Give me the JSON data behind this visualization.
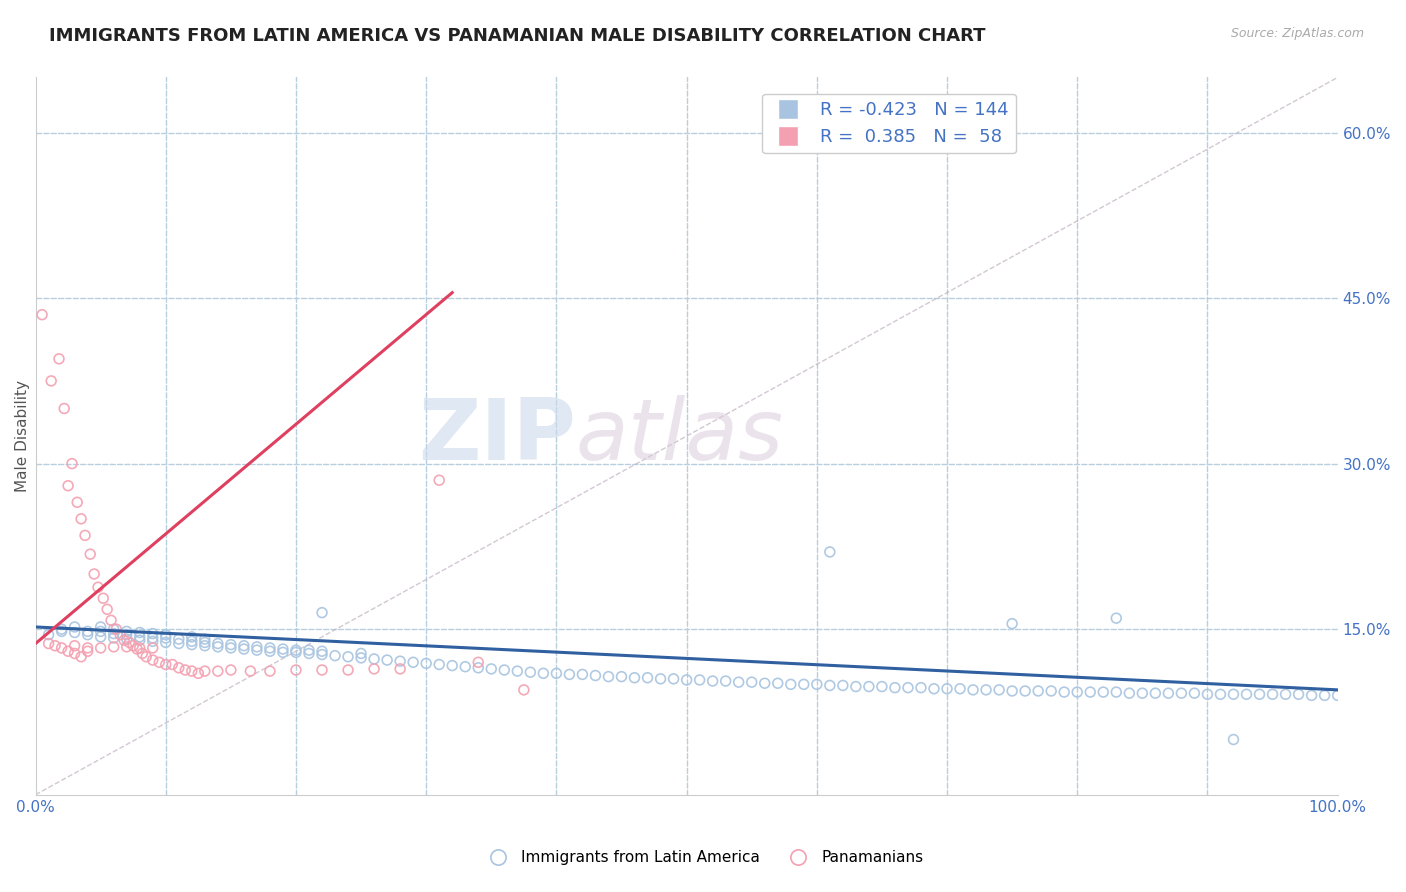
{
  "title": "IMMIGRANTS FROM LATIN AMERICA VS PANAMANIAN MALE DISABILITY CORRELATION CHART",
  "source": "Source: ZipAtlas.com",
  "xlabel": "",
  "ylabel": "Male Disability",
  "xlim": [
    0.0,
    1.0
  ],
  "ylim": [
    0.0,
    0.65
  ],
  "blue_R": -0.423,
  "blue_N": 144,
  "pink_R": 0.385,
  "pink_N": 58,
  "blue_color": "#a8c4e0",
  "pink_color": "#f4a0b0",
  "blue_line_color": "#3060a0",
  "pink_line_color": "#e04060",
  "legend_label_blue": "Immigrants from Latin America",
  "legend_label_pink": "Panamanians",
  "watermark_zip": "ZIP",
  "watermark_atlas": "atlas",
  "title_fontsize": 13,
  "label_fontsize": 11,
  "tick_fontsize": 11,
  "background_color": "#ffffff",
  "grid_color": "#b8cfe0",
  "blue_line_x0": 0.0,
  "blue_line_y0": 0.152,
  "blue_line_x1": 1.0,
  "blue_line_y1": 0.095,
  "pink_line_x0": 0.0,
  "pink_line_y0": 0.137,
  "pink_line_x1": 0.32,
  "pink_line_y1": 0.455,
  "diag_line_x0": 0.0,
  "diag_line_y0": 0.0,
  "diag_line_x1": 1.0,
  "diag_line_y1": 0.65,
  "blue_scatter_x": [
    0.01,
    0.02,
    0.02,
    0.03,
    0.03,
    0.04,
    0.04,
    0.05,
    0.05,
    0.05,
    0.06,
    0.06,
    0.06,
    0.07,
    0.07,
    0.07,
    0.08,
    0.08,
    0.08,
    0.09,
    0.09,
    0.09,
    0.1,
    0.1,
    0.1,
    0.11,
    0.11,
    0.12,
    0.12,
    0.12,
    0.13,
    0.13,
    0.13,
    0.14,
    0.14,
    0.15,
    0.15,
    0.16,
    0.16,
    0.17,
    0.17,
    0.18,
    0.18,
    0.19,
    0.19,
    0.2,
    0.2,
    0.21,
    0.21,
    0.22,
    0.22,
    0.23,
    0.24,
    0.25,
    0.25,
    0.26,
    0.27,
    0.28,
    0.29,
    0.3,
    0.31,
    0.32,
    0.33,
    0.34,
    0.35,
    0.36,
    0.37,
    0.38,
    0.39,
    0.4,
    0.41,
    0.42,
    0.43,
    0.44,
    0.45,
    0.46,
    0.47,
    0.48,
    0.49,
    0.5,
    0.51,
    0.52,
    0.53,
    0.54,
    0.55,
    0.56,
    0.57,
    0.58,
    0.59,
    0.6,
    0.61,
    0.62,
    0.63,
    0.64,
    0.65,
    0.66,
    0.67,
    0.68,
    0.69,
    0.7,
    0.71,
    0.72,
    0.73,
    0.74,
    0.75,
    0.76,
    0.77,
    0.78,
    0.79,
    0.8,
    0.81,
    0.82,
    0.83,
    0.84,
    0.85,
    0.86,
    0.87,
    0.88,
    0.89,
    0.9,
    0.91,
    0.92,
    0.93,
    0.94,
    0.95,
    0.96,
    0.97,
    0.98,
    0.99,
    1.0,
    0.61,
    0.22,
    0.75,
    0.83,
    0.92
  ],
  "blue_scatter_y": [
    0.145,
    0.148,
    0.15,
    0.147,
    0.152,
    0.145,
    0.148,
    0.143,
    0.148,
    0.152,
    0.142,
    0.146,
    0.15,
    0.141,
    0.145,
    0.148,
    0.14,
    0.143,
    0.147,
    0.139,
    0.142,
    0.146,
    0.138,
    0.142,
    0.145,
    0.137,
    0.141,
    0.136,
    0.139,
    0.143,
    0.135,
    0.138,
    0.141,
    0.134,
    0.137,
    0.133,
    0.136,
    0.132,
    0.135,
    0.131,
    0.134,
    0.13,
    0.133,
    0.129,
    0.132,
    0.129,
    0.131,
    0.128,
    0.131,
    0.127,
    0.13,
    0.126,
    0.125,
    0.124,
    0.128,
    0.123,
    0.122,
    0.121,
    0.12,
    0.119,
    0.118,
    0.117,
    0.116,
    0.115,
    0.114,
    0.113,
    0.112,
    0.111,
    0.11,
    0.11,
    0.109,
    0.109,
    0.108,
    0.107,
    0.107,
    0.106,
    0.106,
    0.105,
    0.105,
    0.104,
    0.104,
    0.103,
    0.103,
    0.102,
    0.102,
    0.101,
    0.101,
    0.1,
    0.1,
    0.1,
    0.099,
    0.099,
    0.098,
    0.098,
    0.098,
    0.097,
    0.097,
    0.097,
    0.096,
    0.096,
    0.096,
    0.095,
    0.095,
    0.095,
    0.094,
    0.094,
    0.094,
    0.094,
    0.093,
    0.093,
    0.093,
    0.093,
    0.093,
    0.092,
    0.092,
    0.092,
    0.092,
    0.092,
    0.092,
    0.091,
    0.091,
    0.091,
    0.091,
    0.091,
    0.091,
    0.091,
    0.091,
    0.09,
    0.09,
    0.09,
    0.22,
    0.165,
    0.155,
    0.16,
    0.05
  ],
  "pink_scatter_x": [
    0.005,
    0.012,
    0.018,
    0.022,
    0.028,
    0.025,
    0.032,
    0.035,
    0.038,
    0.042,
    0.045,
    0.048,
    0.052,
    0.055,
    0.058,
    0.062,
    0.065,
    0.068,
    0.072,
    0.075,
    0.078,
    0.082,
    0.085,
    0.09,
    0.095,
    0.1,
    0.105,
    0.11,
    0.115,
    0.12,
    0.125,
    0.13,
    0.14,
    0.15,
    0.165,
    0.18,
    0.2,
    0.22,
    0.24,
    0.26,
    0.28,
    0.31,
    0.34,
    0.03,
    0.04,
    0.05,
    0.06,
    0.07,
    0.08,
    0.09,
    0.01,
    0.015,
    0.02,
    0.025,
    0.03,
    0.035,
    0.04,
    0.375
  ],
  "pink_scatter_y": [
    0.435,
    0.375,
    0.395,
    0.35,
    0.3,
    0.28,
    0.265,
    0.25,
    0.235,
    0.218,
    0.2,
    0.188,
    0.178,
    0.168,
    0.158,
    0.15,
    0.145,
    0.14,
    0.138,
    0.135,
    0.132,
    0.128,
    0.125,
    0.122,
    0.12,
    0.118,
    0.118,
    0.115,
    0.113,
    0.112,
    0.11,
    0.112,
    0.112,
    0.113,
    0.112,
    0.112,
    0.113,
    0.113,
    0.113,
    0.114,
    0.114,
    0.285,
    0.12,
    0.135,
    0.133,
    0.133,
    0.134,
    0.134,
    0.133,
    0.133,
    0.137,
    0.135,
    0.133,
    0.13,
    0.128,
    0.125,
    0.13,
    0.095
  ]
}
